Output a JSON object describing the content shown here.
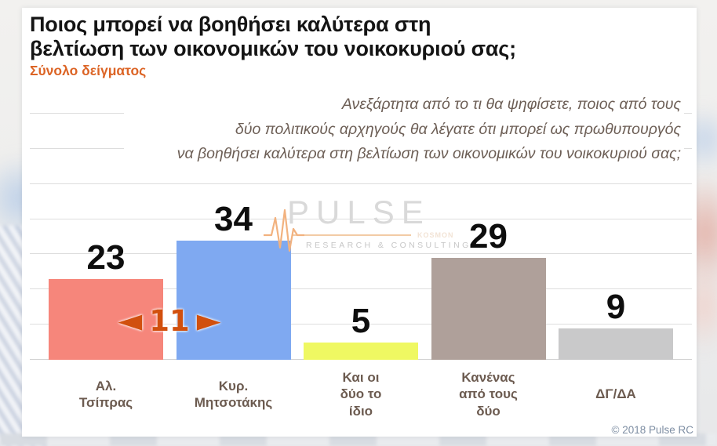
{
  "header": {
    "title": "Ποιος μπορεί να βοηθήσει καλύτερα στη\nβελτίωση των οικονομικών του νοικοκυριού σας;",
    "subtitle": "Σύνολο δείγματος"
  },
  "question": {
    "text": "Ανεξάρτητα από το τι θα ψηφίσετε, ποιος από τους\nδύο πολιτικούς αρχηγούς θα λέγατε ότι μπορεί ως πρωθυπουργός\nνα βοηθήσει καλύτερα στη βελτίωση των οικονομικών του νοικοκυριού σας;"
  },
  "watermark": {
    "name": "PULSE",
    "subbrand": "KOSMON",
    "tagline": "RESEARCH & CONSULTING"
  },
  "footer": {
    "copyright": "© 2018 Pulse RC"
  },
  "theme": {
    "accent_orange": "#DC6425",
    "diff_orange": "#D1500E",
    "label_brown": "#6C5B50",
    "watermark_gray": "#D9D9D9",
    "watermark_pulse_line": "#F2B27F"
  },
  "chart_data": {
    "type": "bar",
    "title": "Ποιος μπορεί να βοηθήσει καλύτερα στη βελτίωση των οικονομικών του νοικοκυριού σας;",
    "subtitle": "Σύνολο δείγματος",
    "categories": [
      "Αλ.\nΤσίπρας",
      "Κυρ.\nΜητσοτάκης",
      "Και οι\nδύο το\nίδιο",
      "Κανένας\nαπό τους\nδύο",
      "ΔΓ/ΔΑ"
    ],
    "values": [
      23,
      34,
      5,
      29,
      9
    ],
    "bar_colors": [
      "#F6867B",
      "#7FA9F1",
      "#EFF862",
      "#AFA09A",
      "#C9C9CA"
    ],
    "xlabel": "",
    "ylabel": "",
    "ylim": [
      0,
      70
    ],
    "grid_step": 10,
    "grid": true,
    "legend": false,
    "value_labels": true,
    "annotation": {
      "left_arrow": "◄",
      "text": "11",
      "right_arrow": "►",
      "meaning": "difference between first two bars"
    }
  }
}
